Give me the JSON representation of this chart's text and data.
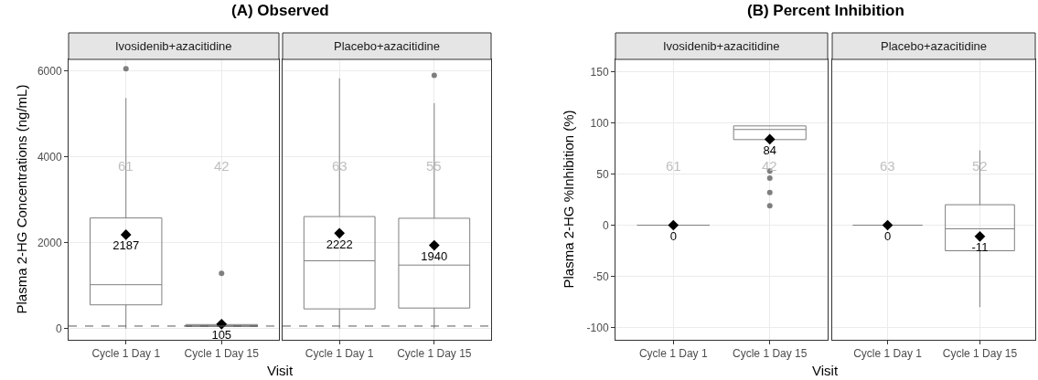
{
  "chart_data": [
    {
      "type": "box",
      "title": "(A) Observed",
      "subtitle": "Ivosidenib+azacitidine",
      "xlabel": "Visit",
      "ylabel": "Plasma 2-HG Concentrations (ng/mL)",
      "categories": [
        "Cycle 1 Day 1",
        "Cycle 1 Day 15"
      ],
      "ylim": [
        -260,
        6270
      ],
      "yticks": [
        0,
        2000,
        4000,
        6000
      ],
      "grid": true,
      "series": [
        {
          "color": "#7f7f7f",
          "boxes": [
            {
              "low": 0,
              "q1": 554,
              "median": 1023,
              "q3": 2577,
              "high": 5370,
              "outliers": [
                6050
              ]
            },
            {
              "low": 20,
              "q1": 50,
              "median": 70,
              "q3": 95,
              "high": 150,
              "outliers": [
                1290
              ]
            }
          ]
        },
        {
          "type": "scatter",
          "color": "#000000",
          "marker": "diamond",
          "x": [
            "Cycle 1 Day 1",
            "Cycle 1 Day 15"
          ],
          "values": [
            2187,
            105
          ],
          "value_labels": [
            "2187",
            "105"
          ]
        }
      ],
      "annotations": [
        "61",
        "42"
      ],
      "ref_lines": [
        {
          "axis": "y",
          "value": 60,
          "label": null,
          "color": "#595959",
          "line_style": "dashed"
        }
      ]
    },
    {
      "type": "box",
      "subtitle": "Placebo+azacitidine",
      "categories": [
        "Cycle 1 Day 1",
        "Cycle 1 Day 15"
      ],
      "ylim": [
        -260,
        6270
      ],
      "yticks": [
        0,
        2000,
        4000,
        6000
      ],
      "grid": true,
      "tick_labels": "x",
      "series": [
        {
          "color": "#7f7f7f",
          "boxes": [
            {
              "low": 0,
              "q1": 460,
              "median": 1580,
              "q3": 2610,
              "high": 5830
            },
            {
              "low": 0,
              "q1": 480,
              "median": 1480,
              "q3": 2570,
              "high": 5250,
              "outliers": [
                5900
              ]
            }
          ]
        },
        {
          "type": "scatter",
          "color": "#000000",
          "marker": "diamond",
          "x": [
            "Cycle 1 Day 1",
            "Cycle 1 Day 15"
          ],
          "values": [
            2222,
            1940
          ],
          "value_labels": [
            "2222",
            "1940"
          ]
        }
      ],
      "annotations": [
        "63",
        "55"
      ],
      "ref_lines": [
        {
          "axis": "y",
          "value": 60,
          "label": null,
          "color": "#595959",
          "line_style": "dashed"
        }
      ]
    },
    {
      "type": "box",
      "title": "(B) Percent Inhibition",
      "subtitle": "Ivosidenib+azacitidine",
      "xlabel": "Visit",
      "ylabel": "Plasma 2-HG %Inhibition (%)",
      "categories": [
        "Cycle 1 Day 1",
        "Cycle 1 Day 15"
      ],
      "ylim": [
        -112,
        162
      ],
      "yticks": [
        -100,
        -50,
        0,
        50,
        100,
        150
      ],
      "grid": true,
      "series": [
        {
          "color": "#7f7f7f",
          "boxes": [
            {
              "low": 0,
              "q1": 0,
              "median": 0,
              "q3": 0,
              "high": 0
            },
            {
              "low": 83.6,
              "q1": 83.6,
              "median": 93.5,
              "q3": 97,
              "high": 97,
              "outliers": [
                53,
                46,
                32,
                19
              ]
            }
          ]
        },
        {
          "type": "scatter",
          "color": "#000000",
          "marker": "diamond",
          "x": [
            "Cycle 1 Day 1",
            "Cycle 1 Day 15"
          ],
          "values": [
            0,
            84
          ],
          "value_labels": [
            "0",
            "84"
          ]
        }
      ],
      "annotations": [
        "61",
        "42"
      ]
    },
    {
      "type": "box",
      "subtitle": "Placebo+azacitidine",
      "categories": [
        "Cycle 1 Day 1",
        "Cycle 1 Day 15"
      ],
      "ylim": [
        -112,
        162
      ],
      "yticks": [
        -100,
        -50,
        0,
        50,
        100,
        150
      ],
      "grid": true,
      "tick_labels": "x",
      "series": [
        {
          "color": "#7f7f7f",
          "boxes": [
            {
              "low": 0,
              "q1": 0,
              "median": 0,
              "q3": 0,
              "high": 0
            },
            {
              "low": -80,
              "q1": -25,
              "median": -3.5,
              "q3": 20,
              "high": 73
            }
          ]
        },
        {
          "type": "scatter",
          "color": "#000000",
          "marker": "diamond",
          "x": [
            "Cycle 1 Day 1",
            "Cycle 1 Day 15"
          ],
          "values": [
            0,
            -11
          ],
          "value_labels": [
            "0",
            "-11"
          ]
        }
      ],
      "annotations": [
        "63",
        "52"
      ]
    }
  ]
}
